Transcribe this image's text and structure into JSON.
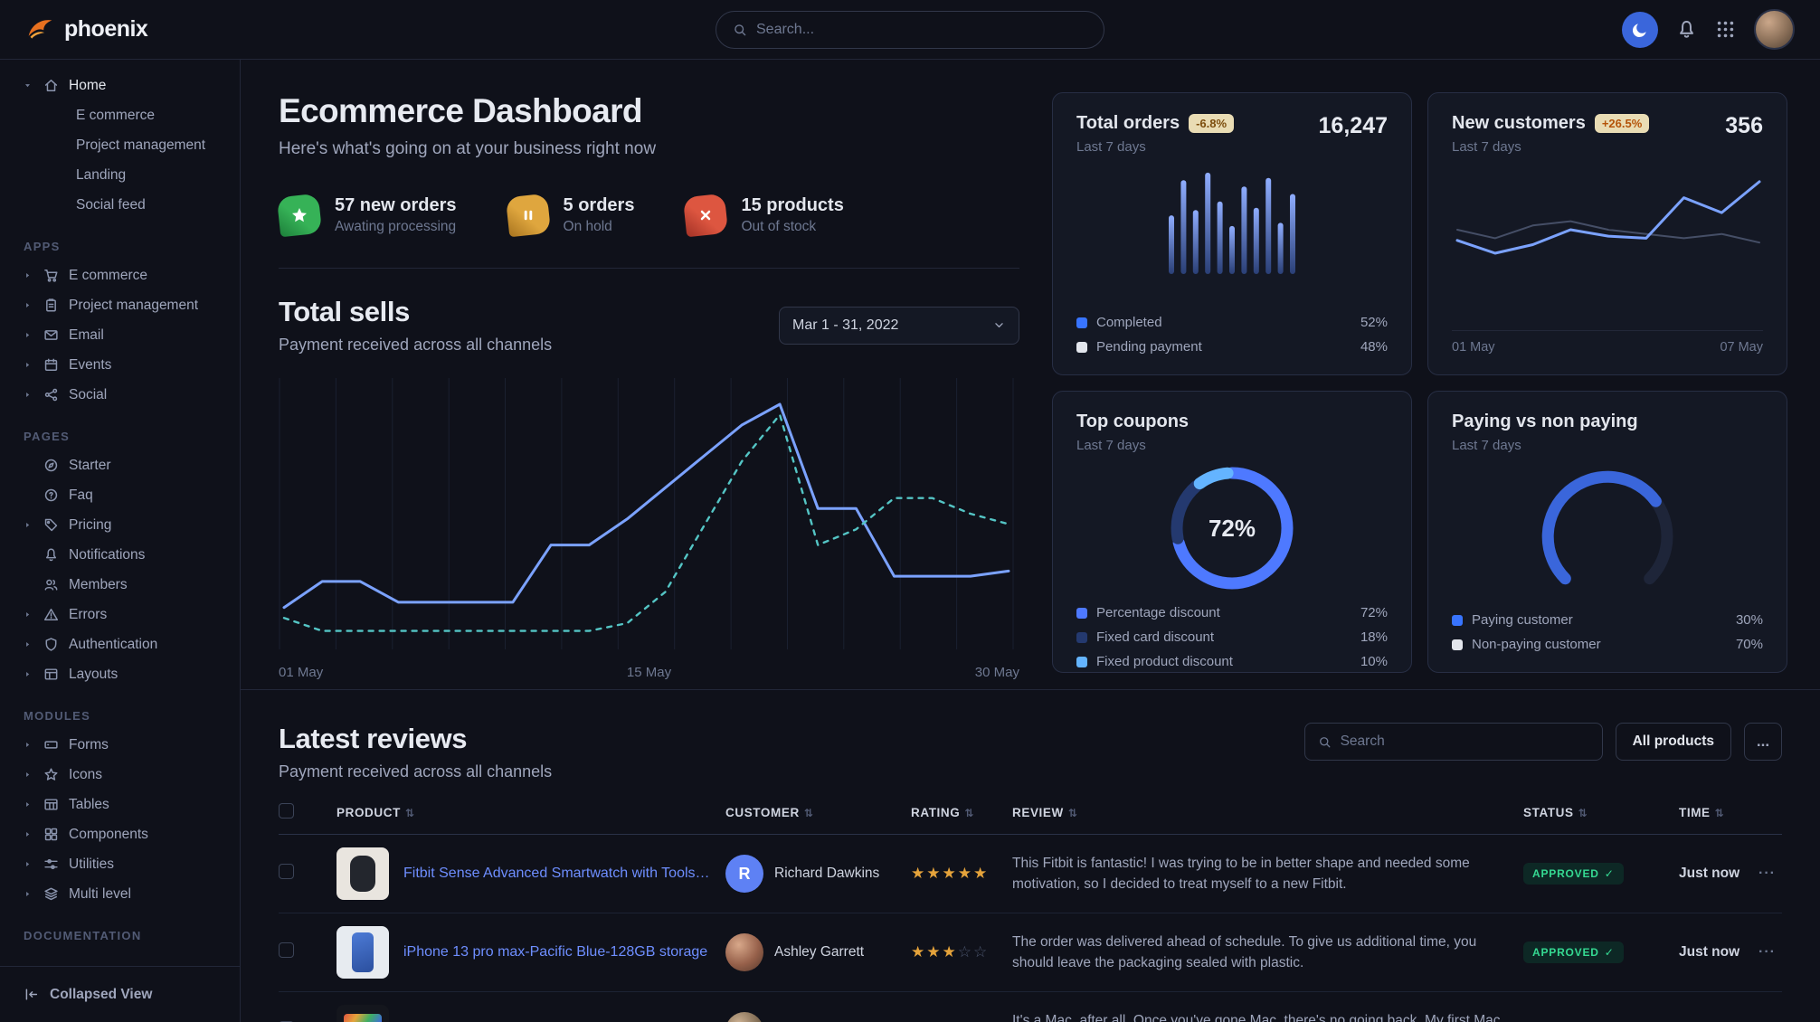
{
  "navbar": {
    "brand": "phoenix",
    "search_placeholder": "Search..."
  },
  "sidebar": {
    "sections": [
      {
        "label": "",
        "items": [
          {
            "label": "Home",
            "icon": "home",
            "caret": "down",
            "active": true,
            "children": [
              "E commerce",
              "Project management",
              "Landing",
              "Social feed"
            ]
          }
        ]
      },
      {
        "label": "APPS",
        "items": [
          {
            "label": "E commerce",
            "icon": "cart",
            "caret": "right"
          },
          {
            "label": "Project management",
            "icon": "clipboard",
            "caret": "right"
          },
          {
            "label": "Email",
            "icon": "mail",
            "caret": "right"
          },
          {
            "label": "Events",
            "icon": "calendar",
            "caret": "right"
          },
          {
            "label": "Social",
            "icon": "share",
            "caret": "right"
          }
        ]
      },
      {
        "label": "PAGES",
        "items": [
          {
            "label": "Starter",
            "icon": "compass"
          },
          {
            "label": "Faq",
            "icon": "question"
          },
          {
            "label": "Pricing",
            "icon": "tag",
            "caret": "right"
          },
          {
            "label": "Notifications",
            "icon": "bell"
          },
          {
            "label": "Members",
            "icon": "users"
          },
          {
            "label": "Errors",
            "icon": "warning",
            "caret": "right"
          },
          {
            "label": "Authentication",
            "icon": "shield",
            "caret": "right"
          },
          {
            "label": "Layouts",
            "icon": "layout",
            "caret": "right"
          }
        ]
      },
      {
        "label": "MODULES",
        "items": [
          {
            "label": "Forms",
            "icon": "form",
            "caret": "right"
          },
          {
            "label": "Icons",
            "icon": "star",
            "caret": "right"
          },
          {
            "label": "Tables",
            "icon": "table",
            "caret": "right"
          },
          {
            "label": "Components",
            "icon": "grid4",
            "caret": "right"
          },
          {
            "label": "Utilities",
            "icon": "sliders",
            "caret": "right"
          },
          {
            "label": "Multi level",
            "icon": "layers",
            "caret": "right"
          }
        ]
      },
      {
        "label": "DOCUMENTATION",
        "items": []
      }
    ],
    "footer_label": "Collapsed View"
  },
  "header": {
    "title": "Ecommerce Dashboard",
    "subtitle": "Here's what's going on at your business right now"
  },
  "stats": [
    {
      "value": "57 new orders",
      "caption": "Awating processing",
      "icon": "star-fill",
      "color": "#36b257",
      "shade": "#1d7f3a"
    },
    {
      "value": "5 orders",
      "caption": "On hold",
      "icon": "pause",
      "color": "#dfa63e",
      "shade": "#a8741f"
    },
    {
      "value": "15 products",
      "caption": "Out of stock",
      "icon": "x",
      "color": "#dd5640",
      "shade": "#a33226"
    }
  ],
  "total_sells": {
    "title": "Total sells",
    "subtitle": "Payment received across all channels",
    "date_range": "Mar 1 - 31, 2022"
  },
  "cards": {
    "total_orders": {
      "title": "Total orders",
      "badge": "-6.8%",
      "period": "Last 7 days",
      "value": "16,247",
      "legend": [
        {
          "label": "Completed",
          "value": "52%",
          "color": "#3874ff"
        },
        {
          "label": "Pending payment",
          "value": "48%",
          "color": "#e3e6ed"
        }
      ]
    },
    "new_customers": {
      "title": "New customers",
      "badge": "+26.5%",
      "period": "Last 7 days",
      "value": "356",
      "x_left": "01 May",
      "x_right": "07 May"
    },
    "top_coupons": {
      "title": "Top coupons",
      "period": "Last 7 days",
      "center_label": "72%",
      "legend": [
        {
          "label": "Percentage discount",
          "value": "72%",
          "color": "#4e79ff"
        },
        {
          "label": "Fixed card discount",
          "value": "18%",
          "color": "#24396f"
        },
        {
          "label": "Fixed product discount",
          "value": "10%",
          "color": "#64b4ff"
        }
      ]
    },
    "paying": {
      "title": "Paying vs non paying",
      "period": "Last 7 days",
      "legend": [
        {
          "label": "Paying customer",
          "value": "30%",
          "color": "#3874ff"
        },
        {
          "label": "Non-paying customer",
          "value": "70%",
          "color": "#e3e6ed"
        }
      ]
    }
  },
  "reviews": {
    "title": "Latest reviews",
    "subtitle": "Payment received across all channels",
    "search_placeholder": "Search",
    "all_products_label": "All products",
    "more_label": "...",
    "columns": [
      "PRODUCT",
      "CUSTOMER",
      "RATING",
      "REVIEW",
      "STATUS",
      "TIME"
    ],
    "rows": [
      {
        "product": "Fitbit Sense Advanced Smartwatch with Tools fo...",
        "thumb": "watch",
        "customer": "Richard Dawkins",
        "avatar": {
          "type": "initial",
          "text": "R",
          "color": "#5e81f4"
        },
        "rating": 5,
        "review": "This Fitbit is fantastic! I was trying to be in better shape and needed some motivation, so I decided to treat myself to a new Fitbit.",
        "status": "APPROVED",
        "time": "Just now"
      },
      {
        "product": "iPhone 13 pro max-Pacific Blue-128GB storage",
        "thumb": "phone",
        "customer": "Ashley Garrett",
        "avatar": {
          "type": "photo",
          "variant": "a"
        },
        "rating": 3,
        "review": "The order was delivered ahead of schedule. To give us additional time, you should leave the packaging sealed with plastic.",
        "status": "APPROVED",
        "time": "Just now"
      },
      {
        "product": "",
        "thumb": "laptop",
        "customer": "",
        "avatar": {
          "type": "photo",
          "variant": "b"
        },
        "rating": 0,
        "review": "It's a Mac, after all. Once you've gone Mac, there's no going back. My first Mac lasted...",
        "status": "",
        "time": ""
      }
    ]
  },
  "chart_data": [
    {
      "id": "total-sells",
      "type": "line",
      "title": "Total sells",
      "x_ticks": [
        "01 May",
        "15 May",
        "30 May"
      ],
      "ylim": [
        0,
        100
      ],
      "grid": true,
      "legend_position": "none",
      "series": [
        {
          "name": "Current period",
          "style": "solid",
          "color": "#7ba2ff",
          "values": [
            14,
            24,
            24,
            16,
            16,
            16,
            16,
            38,
            38,
            48,
            60,
            72,
            84,
            92,
            52,
            52,
            26,
            26,
            26,
            28
          ]
        },
        {
          "name": "Previous period",
          "style": "dashed",
          "color": "#54c5c5",
          "values": [
            10,
            5,
            5,
            5,
            5,
            5,
            5,
            5,
            5,
            8,
            20,
            45,
            70,
            88,
            38,
            44,
            56,
            56,
            50,
            46
          ]
        }
      ]
    },
    {
      "id": "total-orders",
      "type": "bar",
      "title": "Total orders",
      "ylim": [
        0,
        100
      ],
      "values": [
        55,
        88,
        60,
        95,
        68,
        45,
        82,
        62,
        90,
        48,
        75
      ],
      "colors": [
        "#7fa0ff",
        "#24386b"
      ]
    },
    {
      "id": "new-customers",
      "type": "line",
      "title": "New customers",
      "x_ticks": [
        "01 May",
        "07 May"
      ],
      "ylim": [
        0,
        100
      ],
      "series": [
        {
          "name": "secondary",
          "style": "solid",
          "color": "#454e66",
          "values": [
            50,
            42,
            54,
            58,
            50,
            46,
            42,
            46,
            38
          ]
        },
        {
          "name": "primary",
          "style": "solid",
          "color": "#7ba2ff",
          "values": [
            40,
            28,
            36,
            50,
            44,
            42,
            80,
            66,
            95
          ]
        }
      ]
    },
    {
      "id": "top-coupons",
      "type": "pie",
      "title": "Top coupons",
      "center_label": "72%",
      "labels": [
        "Percentage discount",
        "Fixed card discount",
        "Fixed product discount"
      ],
      "values": [
        72,
        18,
        10
      ],
      "colors": [
        "#4e79ff",
        "#24396f",
        "#64b4ff"
      ]
    },
    {
      "id": "paying-gauge",
      "type": "gauge",
      "title": "Paying vs non paying",
      "labels": [
        "Paying customer",
        "Non-paying customer"
      ],
      "values": [
        30,
        70
      ],
      "arc_percent": 70,
      "color": "#3a66db",
      "track": "#1e2539"
    }
  ]
}
